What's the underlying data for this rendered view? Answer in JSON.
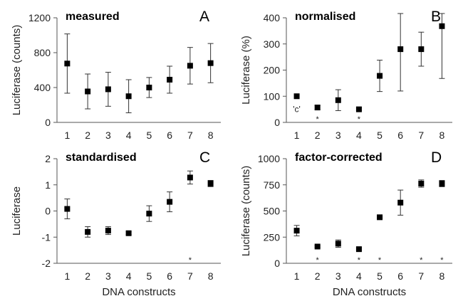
{
  "chart_data": [
    {
      "type": "scatter",
      "title": "measured",
      "panel_letter": "A",
      "xlabel": "",
      "ylabel": "Luciferase (counts)",
      "categories": [
        "1",
        "2",
        "3",
        "4",
        "5",
        "6",
        "7",
        "8"
      ],
      "ylim": [
        0,
        1200
      ],
      "yticks": [
        "0",
        "400",
        "800",
        "1200"
      ],
      "series": [
        {
          "values": [
            675,
            355,
            380,
            300,
            400,
            490,
            650,
            680
          ],
          "error": [
            340,
            200,
            195,
            190,
            115,
            155,
            210,
            225
          ]
        }
      ],
      "significance": [],
      "annotations": []
    },
    {
      "type": "scatter",
      "title": "normalised",
      "panel_letter": "B",
      "xlabel": "",
      "ylabel": "Luciferase (%)",
      "categories": [
        "1",
        "2",
        "3",
        "4",
        "5",
        "6",
        "7",
        "8"
      ],
      "ylim": [
        0,
        400
      ],
      "yticks": [
        "0",
        "100",
        "200",
        "300",
        "400"
      ],
      "series": [
        {
          "values": [
            100,
            57,
            85,
            50,
            178,
            280,
            280,
            368
          ],
          "error": [
            0,
            8,
            40,
            5,
            60,
            160,
            65,
            200
          ]
        }
      ],
      "significance": [
        "2",
        "4"
      ],
      "annotations": [
        {
          "category": "1",
          "text": "'c'"
        }
      ]
    },
    {
      "type": "scatter",
      "title": "standardised",
      "panel_letter": "C",
      "xlabel": "DNA constructs",
      "ylabel": "Luciferase",
      "categories": [
        "1",
        "2",
        "3",
        "4",
        "5",
        "6",
        "7",
        "8"
      ],
      "ylim": [
        -2,
        2
      ],
      "yticks": [
        "-2",
        "-1",
        "0",
        "1",
        "2"
      ],
      "series": [
        {
          "values": [
            0.08,
            -0.8,
            -0.75,
            -0.85,
            -0.1,
            0.35,
            1.28,
            1.05
          ],
          "error": [
            0.38,
            0.2,
            0.15,
            0.05,
            0.3,
            0.38,
            0.25,
            0.12
          ]
        }
      ],
      "significance": [
        "7"
      ],
      "annotations": []
    },
    {
      "type": "scatter",
      "title": "factor-corrected",
      "panel_letter": "D",
      "xlabel": "DNA constructs",
      "ylabel": "Luciferase (counts)",
      "categories": [
        "1",
        "2",
        "3",
        "4",
        "5",
        "6",
        "7",
        "8"
      ],
      "ylim": [
        0,
        1000
      ],
      "yticks": [
        "0",
        "250",
        "500",
        "750",
        "1000"
      ],
      "series": [
        {
          "values": [
            312,
            160,
            188,
            135,
            440,
            580,
            762,
            762
          ],
          "error": [
            50,
            8,
            35,
            10,
            8,
            120,
            35,
            30
          ]
        }
      ],
      "significance": [
        "2",
        "4",
        "5",
        "7",
        "8"
      ],
      "annotations": []
    }
  ]
}
